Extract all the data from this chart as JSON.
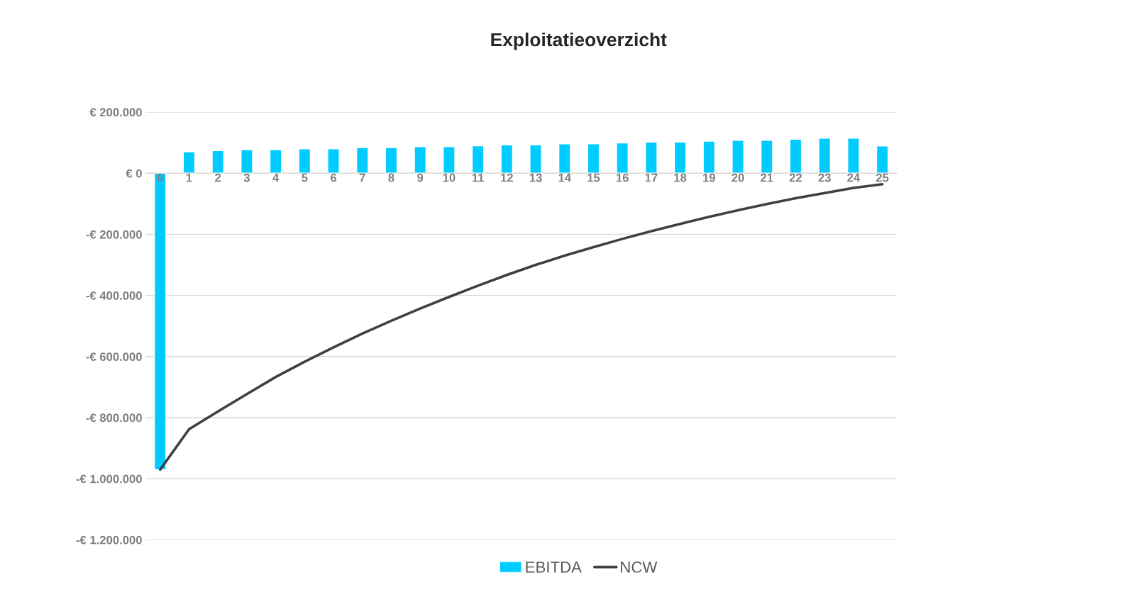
{
  "chart_data": {
    "type": "bar",
    "title": "Exploitatieoverzicht",
    "categories": [
      "0",
      "1",
      "2",
      "3",
      "4",
      "5",
      "6",
      "7",
      "8",
      "9",
      "10",
      "11",
      "12",
      "13",
      "14",
      "15",
      "16",
      "17",
      "18",
      "19",
      "20",
      "21",
      "22",
      "23",
      "24",
      "25"
    ],
    "series": [
      {
        "name": "EBITDA",
        "color": "#00ccff",
        "values": [
          -970000,
          70000,
          74000,
          77000,
          77000,
          80000,
          80000,
          84000,
          84000,
          87000,
          87000,
          90000,
          93000,
          93000,
          96000,
          96000,
          99000,
          102000,
          102000,
          105000,
          108000,
          108000,
          111000,
          115000,
          115000,
          89000
        ]
      },
      {
        "name": "NCW",
        "type": "line",
        "color": "#404040",
        "values": [
          -970000,
          -838000,
          -780000,
          -723000,
          -667000,
          -617000,
          -570000,
          -525000,
          -483000,
          -443000,
          -405000,
          -368000,
          -333000,
          -300000,
          -270000,
          -242000,
          -215000,
          -190000,
          -166000,
          -143000,
          -121000,
          -101000,
          -82000,
          -65000,
          -48000,
          -36000
        ]
      }
    ],
    "ylim": [
      -1200000,
      200000
    ],
    "yticks": [
      {
        "value": -1200000,
        "label": "-€ 1.200.000"
      },
      {
        "value": -1000000,
        "label": "-€ 1.000.000"
      },
      {
        "value": -800000,
        "label": "-€ 800.000"
      },
      {
        "value": -600000,
        "label": "-€ 600.000"
      },
      {
        "value": -400000,
        "label": "-€ 400.000"
      },
      {
        "value": -200000,
        "label": "-€ 200.000"
      },
      {
        "value": 0,
        "label": "€ 0"
      },
      {
        "value": 200000,
        "label": "€ 200.000"
      }
    ],
    "grid": "y",
    "legend": "bottom",
    "marker": "none",
    "line_style": "solid"
  }
}
